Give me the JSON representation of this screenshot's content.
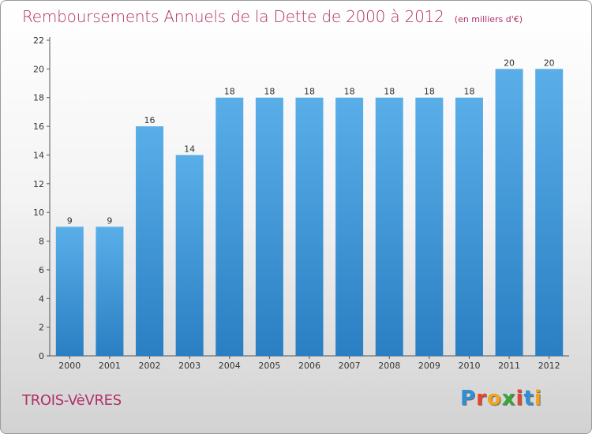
{
  "header": {
    "title": "Remboursements Annuels de la Dette de 2000 à 2012",
    "unit": "(en milliers d'€)"
  },
  "footer": {
    "commune": "TROIS-VèVRES",
    "logo_letters": [
      "P",
      "r",
      "o",
      "x",
      "i",
      "t",
      "i"
    ],
    "logo_colors": [
      "#2f8fd6",
      "#e8432e",
      "#f2a41a",
      "#3aa63a",
      "#e8432e",
      "#2f8fd6",
      "#f2a41a"
    ]
  },
  "colors": {
    "bar_top": "#5aaee8",
    "bar_bottom": "#2a7fc3",
    "accent": "#b03068"
  },
  "chart_data": {
    "type": "bar",
    "categories": [
      "2000",
      "2001",
      "2002",
      "2003",
      "2004",
      "2005",
      "2006",
      "2007",
      "2008",
      "2009",
      "2010",
      "2011",
      "2012"
    ],
    "values": [
      9,
      9,
      16,
      14,
      18,
      18,
      18,
      18,
      18,
      18,
      18,
      20,
      20
    ],
    "yticks": [
      0,
      2,
      4,
      6,
      8,
      10,
      12,
      14,
      16,
      18,
      20,
      22
    ],
    "ylim": [
      0,
      22
    ],
    "grid": false,
    "data_labels": true
  }
}
